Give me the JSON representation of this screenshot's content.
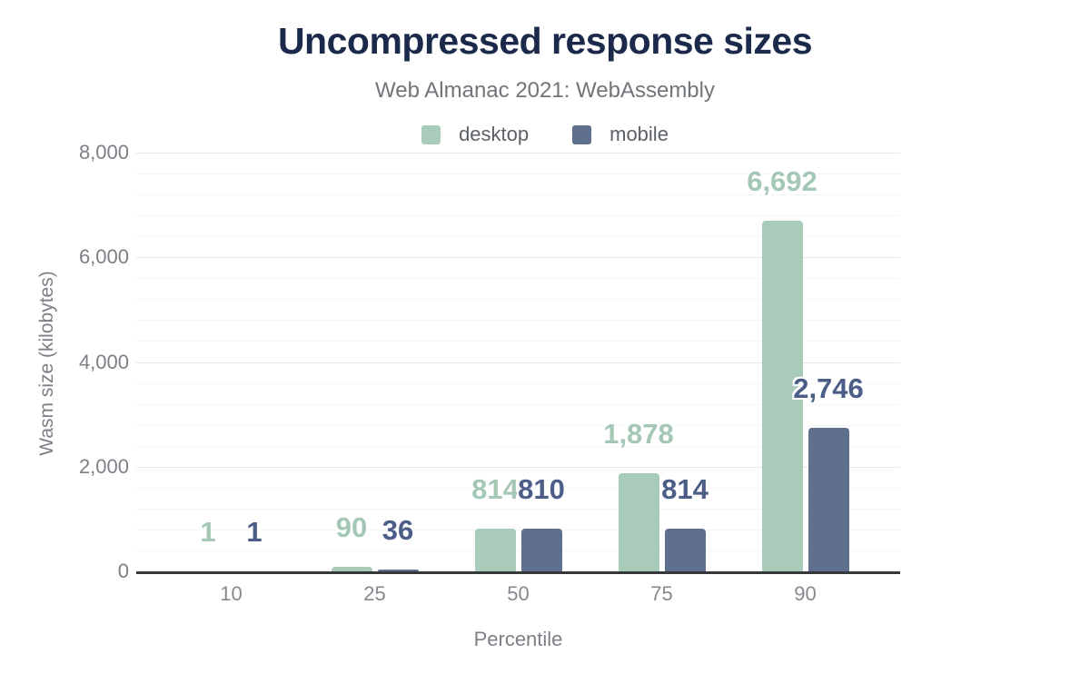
{
  "title": "Uncompressed response sizes",
  "subtitle": "Web Almanac 2021: WebAssembly",
  "colors": {
    "title": "#1b2a4a",
    "muted_text": "#7c8086",
    "axis_line": "#37383a",
    "grid_minor": "#f4f5f6",
    "grid_major": "#e7e9ea",
    "desktop": "#a9cbba",
    "mobile": "#5f708e",
    "desktop_value_label": "#a5c8b6",
    "mobile_value_label": "#4c5e88"
  },
  "chart_data": {
    "type": "bar",
    "title": "Uncompressed response sizes",
    "subtitle": "Web Almanac 2021: WebAssembly",
    "xlabel": "Percentile",
    "ylabel": "Wasm size (kilobytes)",
    "categories": [
      "10",
      "25",
      "50",
      "75",
      "90"
    ],
    "series": [
      {
        "name": "desktop",
        "color": "#a9cbba",
        "label_color": "#a5c8b6",
        "values": [
          1,
          90,
          814,
          1878,
          6692
        ],
        "value_labels": [
          "1",
          "90",
          "814",
          "1,878",
          "6,692"
        ]
      },
      {
        "name": "mobile",
        "color": "#5f708e",
        "label_color": "#4c5e88",
        "values": [
          1,
          36,
          810,
          814,
          2746
        ],
        "value_labels": [
          "1",
          "36",
          "810",
          "814",
          "2,746"
        ]
      }
    ],
    "ylim": [
      0,
      8000
    ],
    "ytick_step": 2000,
    "yminor_step": 400,
    "ytick_labels": [
      "0",
      "2,000",
      "4,000",
      "6,000",
      "8,000"
    ],
    "grid": true,
    "legend_position": "top"
  }
}
